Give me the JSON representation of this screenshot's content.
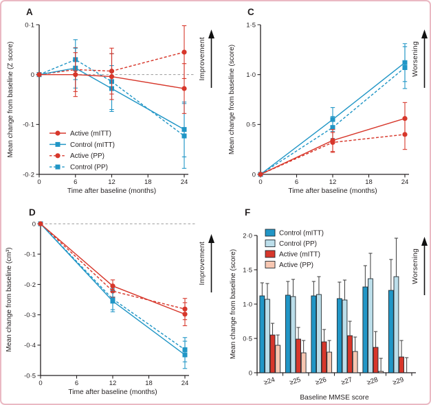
{
  "figure": {
    "background": "#ffffff",
    "border_color": "#eab9c3"
  },
  "colors": {
    "active_red": "#d7372b",
    "control_blue": "#2196c6",
    "control_pp_fill": "#bcdeea",
    "active_pp_fill": "#f7c7b2",
    "bar_outline": "#202a30",
    "axis": "#231f20",
    "zero_line": "#9a9a9a",
    "error_bar_dark": "#3a3a3a"
  },
  "chart_data": [
    {
      "panel_label": "A",
      "type": "line",
      "xlabel": "Time after baseline (months)",
      "ylabel": "Mean change from baseline (Z score)",
      "direction_label": "Improvement",
      "xlim": [
        0,
        24
      ],
      "ylim": [
        -0.2,
        0.1
      ],
      "xtick_values": [
        0,
        6,
        12,
        18,
        24
      ],
      "xtick_labels": [
        "0",
        "6",
        "12",
        "18",
        "24"
      ],
      "ytick_values": [
        0.1,
        0,
        -0.1,
        -0.2
      ],
      "ytick_labels": [
        "0·1",
        "0",
        "-0·1",
        "-0·2"
      ],
      "zero_line": true,
      "legend": true,
      "series": [
        {
          "name": "Active (mITT)",
          "color": "#d7372b",
          "marker": "circle",
          "dash": false,
          "x": [
            0,
            6,
            12,
            24
          ],
          "y": [
            0,
            0.0,
            -0.004,
            -0.028
          ],
          "err": [
            0,
            0.044,
            0.046,
            0.05
          ]
        },
        {
          "name": "Control (mITT)",
          "color": "#2196c6",
          "marker": "square",
          "dash": false,
          "x": [
            0,
            6,
            12,
            24
          ],
          "y": [
            0,
            0.013,
            -0.028,
            -0.11
          ],
          "err": [
            0,
            0.04,
            0.046,
            0.055
          ]
        },
        {
          "name": "Active (PP)",
          "color": "#d7372b",
          "marker": "circle",
          "dash": true,
          "x": [
            0,
            6,
            12,
            24
          ],
          "y": [
            0,
            0.01,
            0.007,
            0.045
          ],
          "err": [
            0,
            0.044,
            0.046,
            0.053
          ]
        },
        {
          "name": "Control (PP)",
          "color": "#2196c6",
          "marker": "square",
          "dash": true,
          "x": [
            0,
            6,
            12,
            24
          ],
          "y": [
            0,
            0.03,
            -0.014,
            -0.123
          ],
          "err": [
            0,
            0.04,
            0.056,
            0.065
          ]
        }
      ]
    },
    {
      "panel_label": "C",
      "type": "line",
      "xlabel": "Time after baseline (months)",
      "ylabel": "Mean change from baseline (score)",
      "direction_label": "Worsening",
      "xlim": [
        0,
        24
      ],
      "ylim": [
        0,
        1.5
      ],
      "xtick_values": [
        0,
        6,
        12,
        18,
        24
      ],
      "xtick_labels": [
        "0",
        "6",
        "12",
        "18",
        "24"
      ],
      "ytick_values": [
        0,
        0.5,
        1.0,
        1.5
      ],
      "ytick_labels": [
        "0",
        "0·5",
        "1·0",
        "1·5"
      ],
      "zero_line": false,
      "legend": false,
      "series": [
        {
          "name": "Active (mITT)",
          "color": "#d7372b",
          "marker": "circle",
          "dash": false,
          "x": [
            0,
            12,
            24
          ],
          "y": [
            0,
            0.34,
            0.56
          ],
          "err": [
            0,
            0.11,
            0.16
          ]
        },
        {
          "name": "Control (mITT)",
          "color": "#2196c6",
          "marker": "square",
          "dash": false,
          "x": [
            0,
            12,
            24
          ],
          "y": [
            0,
            0.55,
            1.12
          ],
          "err": [
            0,
            0.12,
            0.19
          ]
        },
        {
          "name": "Active (PP)",
          "color": "#d7372b",
          "marker": "circle",
          "dash": true,
          "x": [
            0,
            12,
            24
          ],
          "y": [
            0,
            0.32,
            0.4
          ],
          "err": [
            0,
            0.1,
            0.15
          ]
        },
        {
          "name": "Control (PP)",
          "color": "#2196c6",
          "marker": "square",
          "dash": true,
          "x": [
            0,
            12,
            24
          ],
          "y": [
            0,
            0.47,
            1.07
          ],
          "err": [
            0,
            0.11,
            0.21
          ]
        }
      ]
    },
    {
      "panel_label": "D",
      "type": "line",
      "xlabel": "Time after baseline (months)",
      "ylabel": "Mean change from baseline (cm³)",
      "direction_label": "Improvement",
      "xlim": [
        0,
        24
      ],
      "ylim": [
        -0.5,
        0
      ],
      "xtick_values": [
        0,
        6,
        12,
        18,
        24
      ],
      "xtick_labels": [
        "0",
        "6",
        "12",
        "18",
        "24"
      ],
      "ytick_values": [
        0,
        -0.1,
        -0.2,
        -0.3,
        -0.4,
        -0.5
      ],
      "ytick_labels": [
        "0",
        "-0·1",
        "-0·2",
        "-0·3",
        "-0·4",
        "-0·5"
      ],
      "zero_line": true,
      "legend": false,
      "series": [
        {
          "name": "Active (mITT)",
          "color": "#d7372b",
          "marker": "circle",
          "dash": false,
          "x": [
            0,
            12,
            24
          ],
          "y": [
            0,
            -0.205,
            -0.298
          ],
          "err": [
            0,
            0.02,
            0.038
          ]
        },
        {
          "name": "Control (mITT)",
          "color": "#2196c6",
          "marker": "square",
          "dash": false,
          "x": [
            0,
            12,
            24
          ],
          "y": [
            0,
            -0.255,
            -0.432
          ],
          "err": [
            0,
            0.035,
            0.045
          ]
        },
        {
          "name": "Active (PP)",
          "color": "#d7372b",
          "marker": "circle",
          "dash": true,
          "x": [
            0,
            12,
            24
          ],
          "y": [
            0,
            -0.222,
            -0.281
          ],
          "err": [
            0,
            0.02,
            0.035
          ]
        },
        {
          "name": "Control (PP)",
          "color": "#2196c6",
          "marker": "square",
          "dash": true,
          "x": [
            0,
            12,
            24
          ],
          "y": [
            0,
            -0.248,
            -0.415
          ],
          "err": [
            0,
            0.035,
            0.04
          ]
        }
      ]
    },
    {
      "panel_label": "F",
      "type": "bar",
      "xlabel": "Baseline MMSE score",
      "ylabel": "Mean change from baseline (score)",
      "direction_label": "Worsening",
      "categories": [
        "≥24",
        "≥25",
        "≥26",
        "≥27",
        "≥28",
        "≥29"
      ],
      "ylim": [
        0,
        2.0
      ],
      "ytick_values": [
        0,
        0.5,
        1.0,
        1.5,
        2.0
      ],
      "ytick_labels": [
        "0",
        "0·5",
        "1·0",
        "1·5",
        "2·0"
      ],
      "legend": true,
      "series": [
        {
          "name": "Control (mITT)",
          "fill": "#2196c6",
          "values": [
            1.12,
            1.13,
            1.12,
            1.08,
            1.25,
            1.2
          ],
          "err_up": [
            0.19,
            0.2,
            0.21,
            0.24,
            0.31,
            0.45
          ]
        },
        {
          "name": "Control (PP)",
          "fill": "#bcdeea",
          "values": [
            1.07,
            1.11,
            1.14,
            1.06,
            1.37,
            1.4
          ],
          "err_up": [
            0.23,
            0.25,
            0.26,
            0.29,
            0.37,
            0.56
          ]
        },
        {
          "name": "Active (mITT)",
          "fill": "#d7372b",
          "values": [
            0.55,
            0.49,
            0.45,
            0.54,
            0.37,
            0.23
          ],
          "err_up": [
            0.17,
            0.17,
            0.18,
            0.21,
            0.23,
            0.24
          ]
        },
        {
          "name": "Active (PP)",
          "fill": "#f7c7b2",
          "values": [
            0.4,
            0.29,
            0.3,
            0.31,
            0.02,
            0.0
          ],
          "err_up": [
            0.15,
            0.18,
            0.17,
            0.21,
            0.19,
            0.22
          ]
        }
      ]
    }
  ]
}
